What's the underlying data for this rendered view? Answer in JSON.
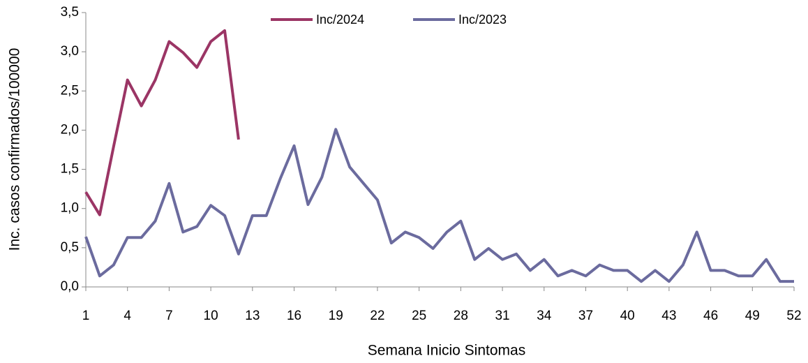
{
  "chart_data": {
    "type": "line",
    "x": [
      1,
      2,
      3,
      4,
      5,
      6,
      7,
      8,
      9,
      10,
      11,
      12,
      13,
      14,
      15,
      16,
      17,
      18,
      19,
      20,
      21,
      22,
      23,
      24,
      25,
      26,
      27,
      28,
      29,
      30,
      31,
      32,
      33,
      34,
      35,
      36,
      37,
      38,
      39,
      40,
      41,
      42,
      43,
      44,
      45,
      46,
      47,
      48,
      49,
      50,
      51,
      52
    ],
    "series": [
      {
        "name": "Inc/2024",
        "color": "#9b3565",
        "values": [
          1.21,
          0.92,
          1.79,
          2.64,
          2.31,
          2.64,
          3.13,
          2.99,
          2.8,
          3.13,
          3.27,
          1.88,
          null,
          null,
          null,
          null,
          null,
          null,
          null,
          null,
          null,
          null,
          null,
          null,
          null,
          null,
          null,
          null,
          null,
          null,
          null,
          null,
          null,
          null,
          null,
          null,
          null,
          null,
          null,
          null,
          null,
          null,
          null,
          null,
          null,
          null,
          null,
          null,
          null,
          null,
          null,
          null
        ]
      },
      {
        "name": "Inc/2023",
        "color": "#6b6b9e",
        "values": [
          0.64,
          0.14,
          0.28,
          0.63,
          0.63,
          0.84,
          1.32,
          0.7,
          0.77,
          1.04,
          0.91,
          0.42,
          0.91,
          0.91,
          1.38,
          1.8,
          1.05,
          1.4,
          2.01,
          1.53,
          1.32,
          1.11,
          0.56,
          0.7,
          0.63,
          0.49,
          0.7,
          0.84,
          0.35,
          0.49,
          0.35,
          0.42,
          0.21,
          0.35,
          0.14,
          0.21,
          0.14,
          0.28,
          0.21,
          0.21,
          0.07,
          0.21,
          0.07,
          0.28,
          0.7,
          0.21,
          0.21,
          0.14,
          0.14,
          0.35,
          0.07,
          0.07
        ]
      }
    ],
    "xlabel": "Semana Inicio Sintomas",
    "ylabel": "Inc. casos confirmados/100000",
    "xlim": [
      1,
      52
    ],
    "xticks": [
      1,
      4,
      7,
      10,
      13,
      16,
      19,
      22,
      25,
      28,
      31,
      34,
      37,
      40,
      43,
      46,
      49,
      52
    ],
    "ylim": [
      0,
      3.5
    ],
    "yticks": [
      {
        "value": 0,
        "label": "0,0"
      },
      {
        "value": 0.5,
        "label": "0,5"
      },
      {
        "value": 1,
        "label": "1,0"
      },
      {
        "value": 1.5,
        "label": "1,5"
      },
      {
        "value": 2,
        "label": "2,0"
      },
      {
        "value": 2.5,
        "label": "2,5"
      },
      {
        "value": 3,
        "label": "3,0"
      },
      {
        "value": 3.5,
        "label": "3,5"
      }
    ],
    "legend": "top"
  }
}
